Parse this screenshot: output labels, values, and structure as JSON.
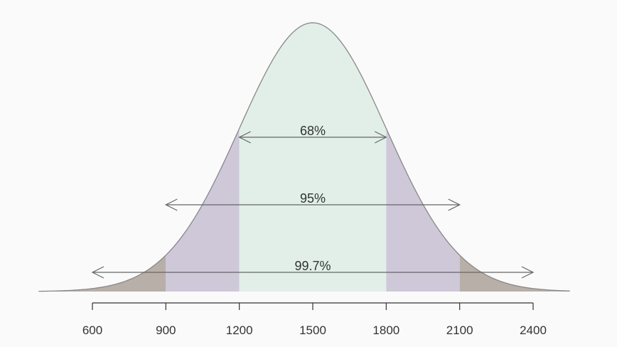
{
  "chart_data": {
    "type": "area",
    "title": "",
    "xlabel": "",
    "ylabel": "",
    "distribution": {
      "mean": 1500,
      "sd": 300
    },
    "xlim": [
      380,
      2550
    ],
    "ticks": [
      600,
      900,
      1200,
      1500,
      1800,
      2100,
      2400
    ],
    "tick_labels": [
      "600",
      "900",
      "1200",
      "1500",
      "1800",
      "2100",
      "2400"
    ],
    "intervals": [
      {
        "label": "68%",
        "from": 1200,
        "to": 1800
      },
      {
        "label": "95%",
        "from": 900,
        "to": 2100
      },
      {
        "label": "99.7%",
        "from": 600,
        "to": 2400
      }
    ],
    "colors": {
      "band_1sd": "#e1efe8",
      "band_2sd": "#cec8d9",
      "band_3sd": "#b8afa9",
      "curve": "#888888",
      "arrow": "#666666",
      "axis": "#333333"
    },
    "grid": false,
    "legend": "none"
  }
}
